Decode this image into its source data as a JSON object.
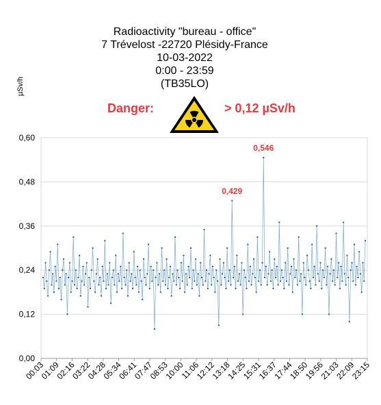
{
  "title": {
    "lines": [
      "Radioactivity \"bureau - office\"",
      "7 Trévelost -22720 Plésidy-France",
      "10-03-2022",
      "0:00 - 23:59",
      "(TB35LO)"
    ]
  },
  "danger": {
    "label": "Danger:",
    "threshold_text": "> 0,12 µSv/h",
    "icon": "radiation-warning-icon"
  },
  "colors": {
    "series": "#1f5d97",
    "line": "#7aa7cf",
    "annotation": "#e8393e",
    "grid": "#d9d9d9"
  },
  "chart_data": {
    "type": "line",
    "ylabel": "µSv/h",
    "xlabel": "",
    "ylim": [
      0,
      0.6
    ],
    "yticks": [
      "0,00",
      "0,12",
      "0,24",
      "0,36",
      "0,48",
      "0,60"
    ],
    "ytick_values": [
      0,
      0.12,
      0.24,
      0.36,
      0.48,
      0.6
    ],
    "x_tick_labels": [
      "00:03",
      "01:09",
      "02:16",
      "03:22",
      "04:28",
      "05:34",
      "06:41",
      "07:47",
      "08:53",
      "10:00",
      "11:06",
      "12:12",
      "13:18",
      "14:25",
      "15:31",
      "16:37",
      "17:44",
      "18:50",
      "19:56",
      "21:03",
      "22:09",
      "23:15"
    ],
    "annotations": [
      {
        "label": "0,429",
        "x": "14:50",
        "value": 0.429
      },
      {
        "label": "0,546",
        "x": "17:44",
        "value": 0.546
      }
    ],
    "series": [
      {
        "values": [
          0.22,
          0.19,
          0.26,
          0.21,
          0.17,
          0.24,
          0.29,
          0.2,
          0.23,
          0.18,
          0.25,
          0.21,
          0.31,
          0.19,
          0.22,
          0.16,
          0.24,
          0.27,
          0.2,
          0.23,
          0.12,
          0.22,
          0.26,
          0.18,
          0.21,
          0.33,
          0.2,
          0.24,
          0.19,
          0.22,
          0.28,
          0.17,
          0.21,
          0.25,
          0.2,
          0.23,
          0.26,
          0.14,
          0.22,
          0.19,
          0.24,
          0.3,
          0.21,
          0.18,
          0.23,
          0.27,
          0.2,
          0.22,
          0.17,
          0.25,
          0.21,
          0.32,
          0.19,
          0.23,
          0.2,
          0.26,
          0.15,
          0.22,
          0.24,
          0.2,
          0.28,
          0.18,
          0.23,
          0.21,
          0.25,
          0.19,
          0.34,
          0.22,
          0.2,
          0.24,
          0.17,
          0.26,
          0.21,
          0.23,
          0.19,
          0.29,
          0.22,
          0.2,
          0.25,
          0.18,
          0.24,
          0.21,
          0.16,
          0.27,
          0.22,
          0.2,
          0.23,
          0.31,
          0.19,
          0.25,
          0.21,
          0.24,
          0.08,
          0.22,
          0.26,
          0.2,
          0.23,
          0.18,
          0.3,
          0.21,
          0.24,
          0.2,
          0.27,
          0.19,
          0.22,
          0.25,
          0.17,
          0.23,
          0.21,
          0.33,
          0.2,
          0.24,
          0.22,
          0.19,
          0.26,
          0.21,
          0.28,
          0.18,
          0.23,
          0.2,
          0.25,
          0.22,
          0.3,
          0.19,
          0.24,
          0.21,
          0.27,
          0.2,
          0.23,
          0.17,
          0.26,
          0.22,
          0.2,
          0.35,
          0.21,
          0.24,
          0.19,
          0.23,
          0.28,
          0.2,
          0.25,
          0.22,
          0.18,
          0.24,
          0.21,
          0.09,
          0.27,
          0.2,
          0.23,
          0.26,
          0.22,
          0.19,
          0.3,
          0.21,
          0.24,
          0.2,
          0.429,
          0.22,
          0.25,
          0.19,
          0.28,
          0.21,
          0.23,
          0.2,
          0.26,
          0.12,
          0.24,
          0.22,
          0.19,
          0.31,
          0.21,
          0.25,
          0.2,
          0.23,
          0.27,
          0.22,
          0.18,
          0.33,
          0.21,
          0.24,
          0.2,
          0.26,
          0.546,
          0.22,
          0.25,
          0.2,
          0.23,
          0.29,
          0.21,
          0.24,
          0.19,
          0.27,
          0.22,
          0.25,
          0.2,
          0.37,
          0.21,
          0.24,
          0.22,
          0.19,
          0.26,
          0.21,
          0.3,
          0.2,
          0.23,
          0.25,
          0.18,
          0.27,
          0.22,
          0.24,
          0.2,
          0.33,
          0.21,
          0.23,
          0.12,
          0.26,
          0.22,
          0.2,
          0.28,
          0.24,
          0.21,
          0.19,
          0.31,
          0.22,
          0.25,
          0.2,
          0.36,
          0.23,
          0.21,
          0.26,
          0.19,
          0.24,
          0.22,
          0.3,
          0.2,
          0.25,
          0.12,
          0.23,
          0.27,
          0.21,
          0.24,
          0.2,
          0.34,
          0.22,
          0.26,
          0.19,
          0.25,
          0.21,
          0.37,
          0.23,
          0.2,
          0.28,
          0.22,
          0.1,
          0.24,
          0.26,
          0.21,
          0.31,
          0.2,
          0.25,
          0.22,
          0.29,
          0.23,
          0.18,
          0.26,
          0.21,
          0.32
        ]
      }
    ],
    "grid": true
  }
}
